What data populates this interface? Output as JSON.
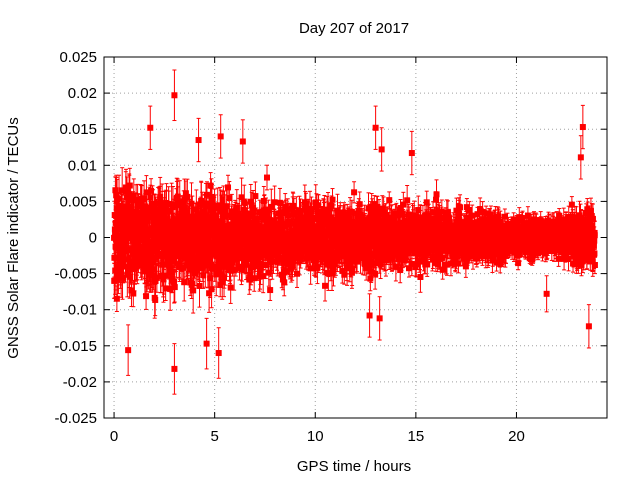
{
  "chart_data": {
    "type": "scatter",
    "title": "Day 207 of 2017",
    "xlabel": "GPS time / hours",
    "ylabel": "GNSS Solar Flare indicator / TECUs",
    "xlim": [
      -0.5,
      24.5
    ],
    "ylim": [
      -0.025,
      0.025
    ],
    "xticks": [
      0,
      5,
      10,
      15,
      20
    ],
    "xtick_labels": [
      "0",
      "5",
      "10",
      "15",
      "20"
    ],
    "yticks": [
      -0.025,
      -0.02,
      -0.015,
      -0.01,
      -0.005,
      0,
      0.005,
      0.01,
      0.015,
      0.02,
      0.025
    ],
    "ytick_labels": [
      "-0.025",
      "-0.02",
      "-0.015",
      "-0.01",
      "-0.005",
      "0",
      "0.005",
      "0.01",
      "0.015",
      "0.02",
      "0.025"
    ],
    "grid": true,
    "series": [
      {
        "name": "GNSS Solar Flare indicator",
        "color": "#ff0000",
        "marker": "square",
        "error_bars": true,
        "outliers": [
          {
            "x": 3.0,
            "y": 0.0197,
            "err": 0.0035
          },
          {
            "x": 1.8,
            "y": 0.0152,
            "err": 0.003
          },
          {
            "x": 5.3,
            "y": 0.014,
            "err": 0.003
          },
          {
            "x": 6.4,
            "y": 0.0133,
            "err": 0.003
          },
          {
            "x": 4.2,
            "y": 0.0135,
            "err": 0.003
          },
          {
            "x": 13.0,
            "y": 0.0152,
            "err": 0.003
          },
          {
            "x": 13.3,
            "y": 0.0122,
            "err": 0.003
          },
          {
            "x": 14.8,
            "y": 0.0117,
            "err": 0.003
          },
          {
            "x": 23.3,
            "y": 0.0153,
            "err": 0.003
          },
          {
            "x": 23.2,
            "y": 0.0111,
            "err": 0.003
          },
          {
            "x": 3.0,
            "y": -0.0182,
            "err": 0.0035
          },
          {
            "x": 0.7,
            "y": -0.0156,
            "err": 0.0035
          },
          {
            "x": 5.2,
            "y": -0.016,
            "err": 0.0035
          },
          {
            "x": 4.6,
            "y": -0.0147,
            "err": 0.0035
          },
          {
            "x": 23.6,
            "y": -0.0123,
            "err": 0.003
          },
          {
            "x": 21.5,
            "y": -0.0078,
            "err": 0.0025
          },
          {
            "x": 13.2,
            "y": -0.0112,
            "err": 0.003
          },
          {
            "x": 12.7,
            "y": -0.0108,
            "err": 0.003
          }
        ],
        "noise_envelope_std": [
          {
            "x": 0,
            "std": 0.0048
          },
          {
            "x": 5,
            "std": 0.0044
          },
          {
            "x": 8,
            "std": 0.0036
          },
          {
            "x": 12,
            "std": 0.0034
          },
          {
            "x": 15,
            "std": 0.0031
          },
          {
            "x": 19,
            "std": 0.0024
          },
          {
            "x": 21,
            "std": 0.0019
          },
          {
            "x": 22.5,
            "std": 0.0024
          },
          {
            "x": 23.8,
            "std": 0.0034
          }
        ],
        "x_range": [
          0.0,
          23.9
        ],
        "n_points": 2900
      }
    ]
  }
}
